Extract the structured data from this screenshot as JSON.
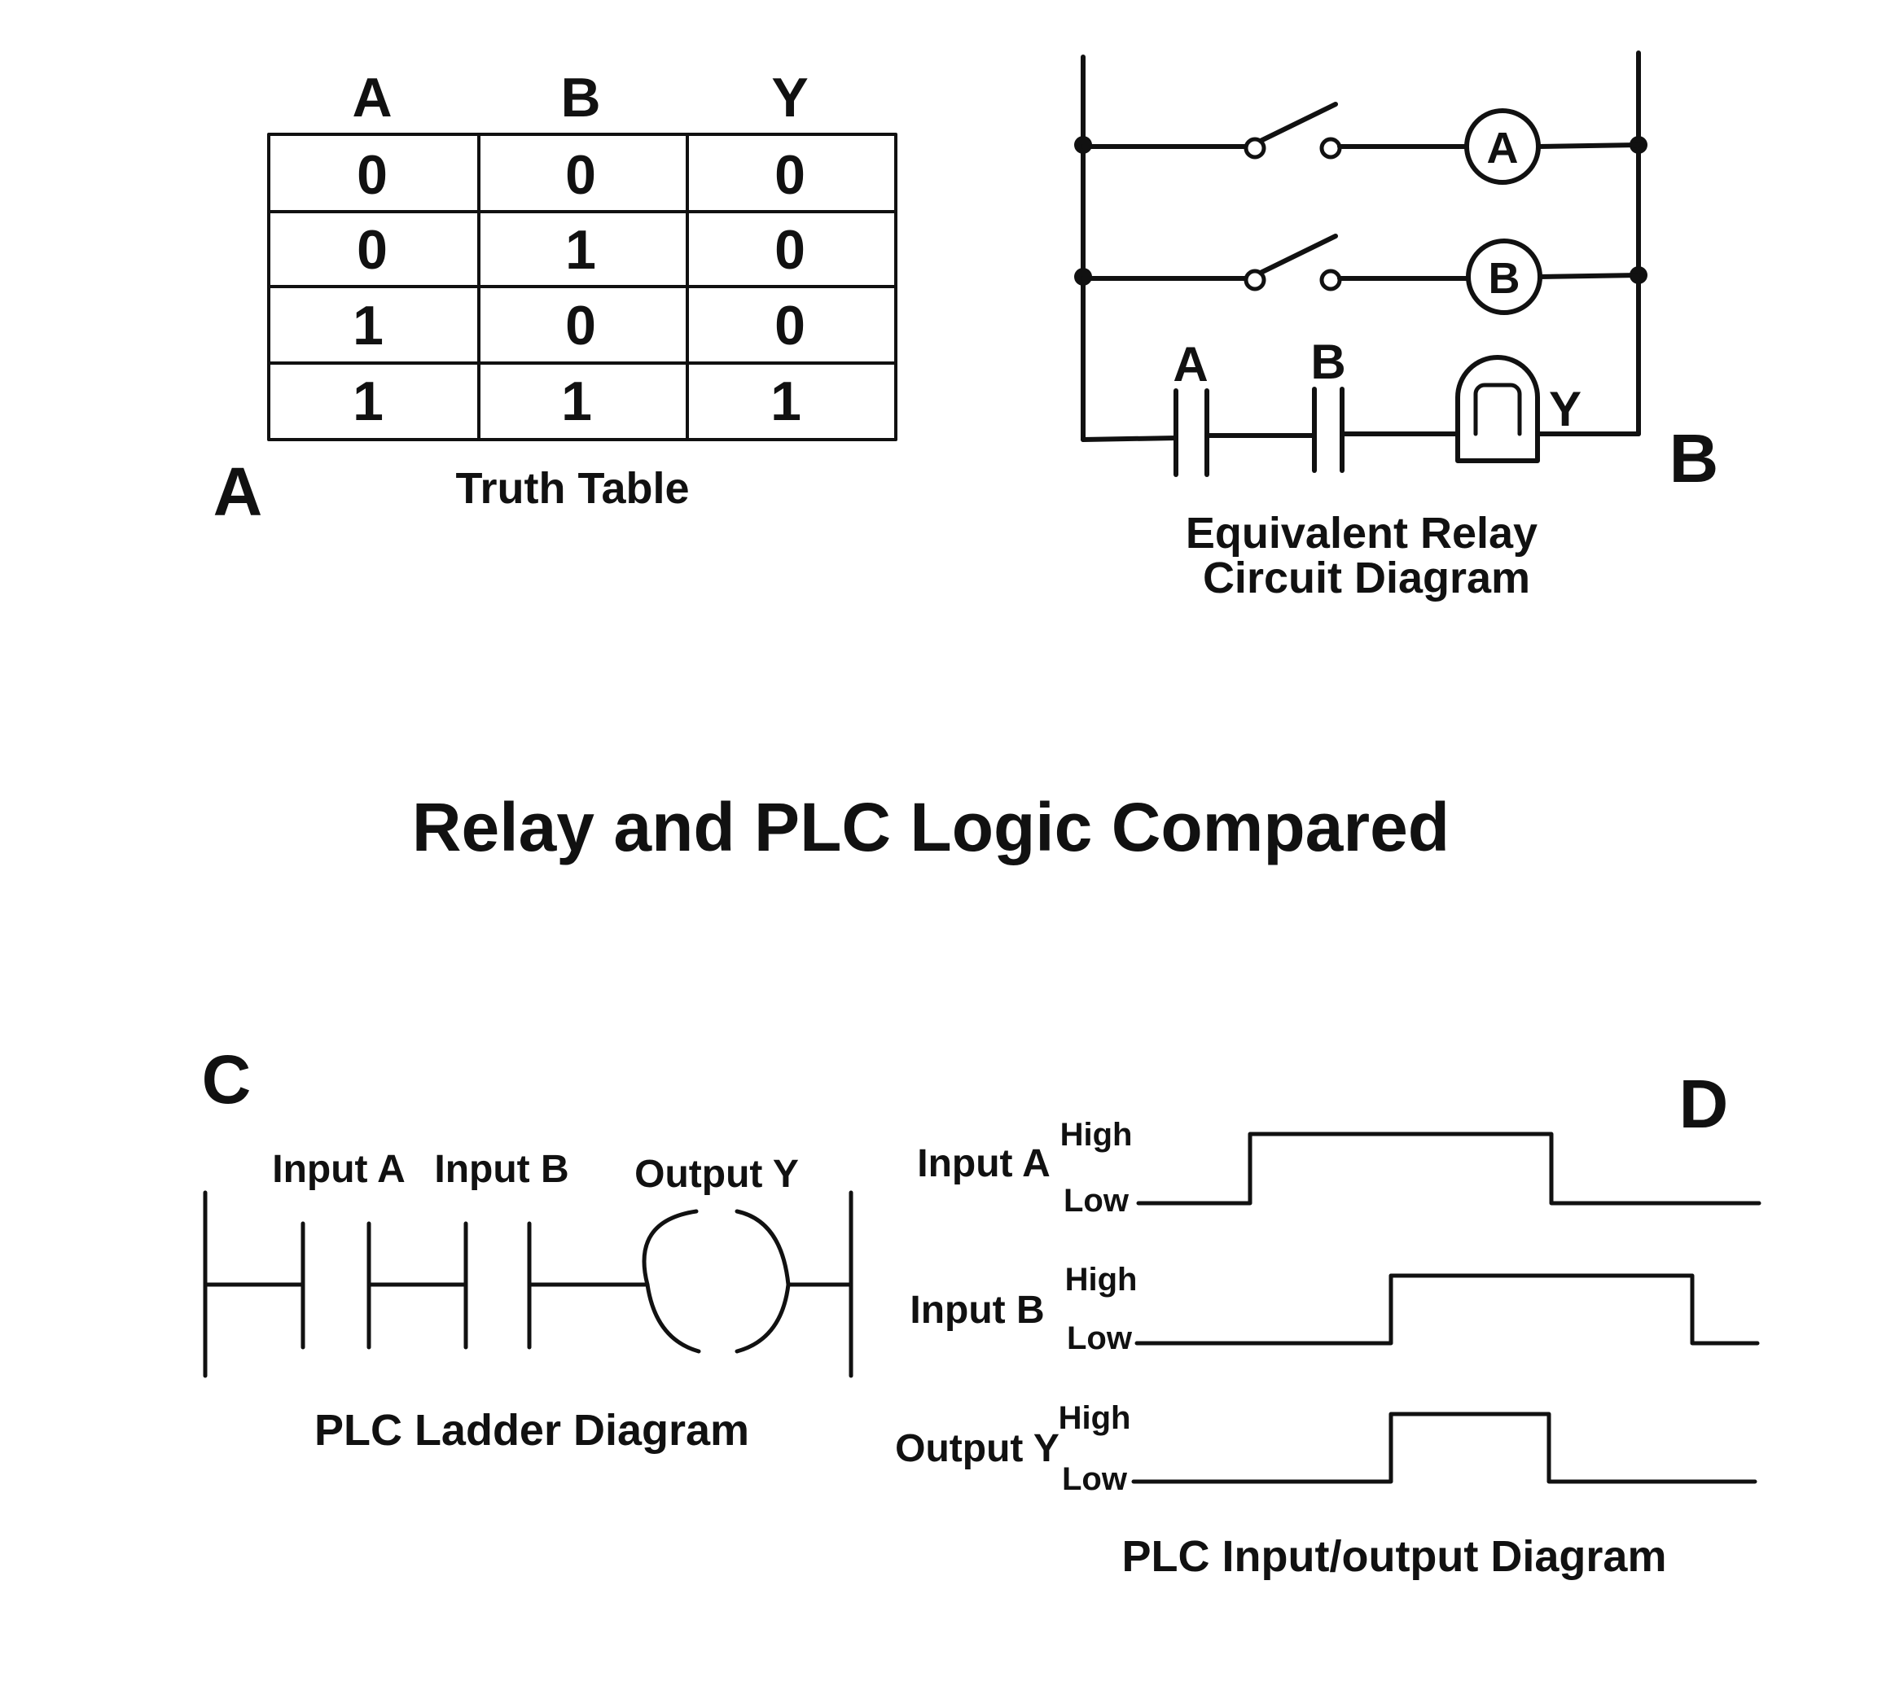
{
  "title": "Relay and PLC Logic Compared",
  "panel_a": {
    "letter": "A",
    "caption": "Truth Table",
    "headers": [
      "A",
      "B",
      "Y"
    ],
    "rows": [
      [
        "0",
        "0",
        "0"
      ],
      [
        "0",
        "1",
        "0"
      ],
      [
        "1",
        "0",
        "0"
      ],
      [
        "1",
        "1",
        "1"
      ]
    ]
  },
  "panel_b": {
    "letter": "B",
    "caption_line1": "Equivalent Relay",
    "caption_line2": "Circuit Diagram",
    "coil_a": "A",
    "coil_b": "B",
    "contact_a": "A",
    "contact_b": "B",
    "lamp": "Y"
  },
  "panel_c": {
    "letter": "C",
    "caption": "PLC Ladder Diagram",
    "input_a": "Input A",
    "input_b": "Input B",
    "output_y": "Output Y"
  },
  "panel_d": {
    "letter": "D",
    "caption": "PLC Input/output Diagram",
    "signals": [
      {
        "label": "Input A",
        "high": "High",
        "low": "Low"
      },
      {
        "label": "Input B",
        "high": "High",
        "low": "Low"
      },
      {
        "label": "Output Y",
        "high": "High",
        "low": "Low"
      }
    ]
  }
}
